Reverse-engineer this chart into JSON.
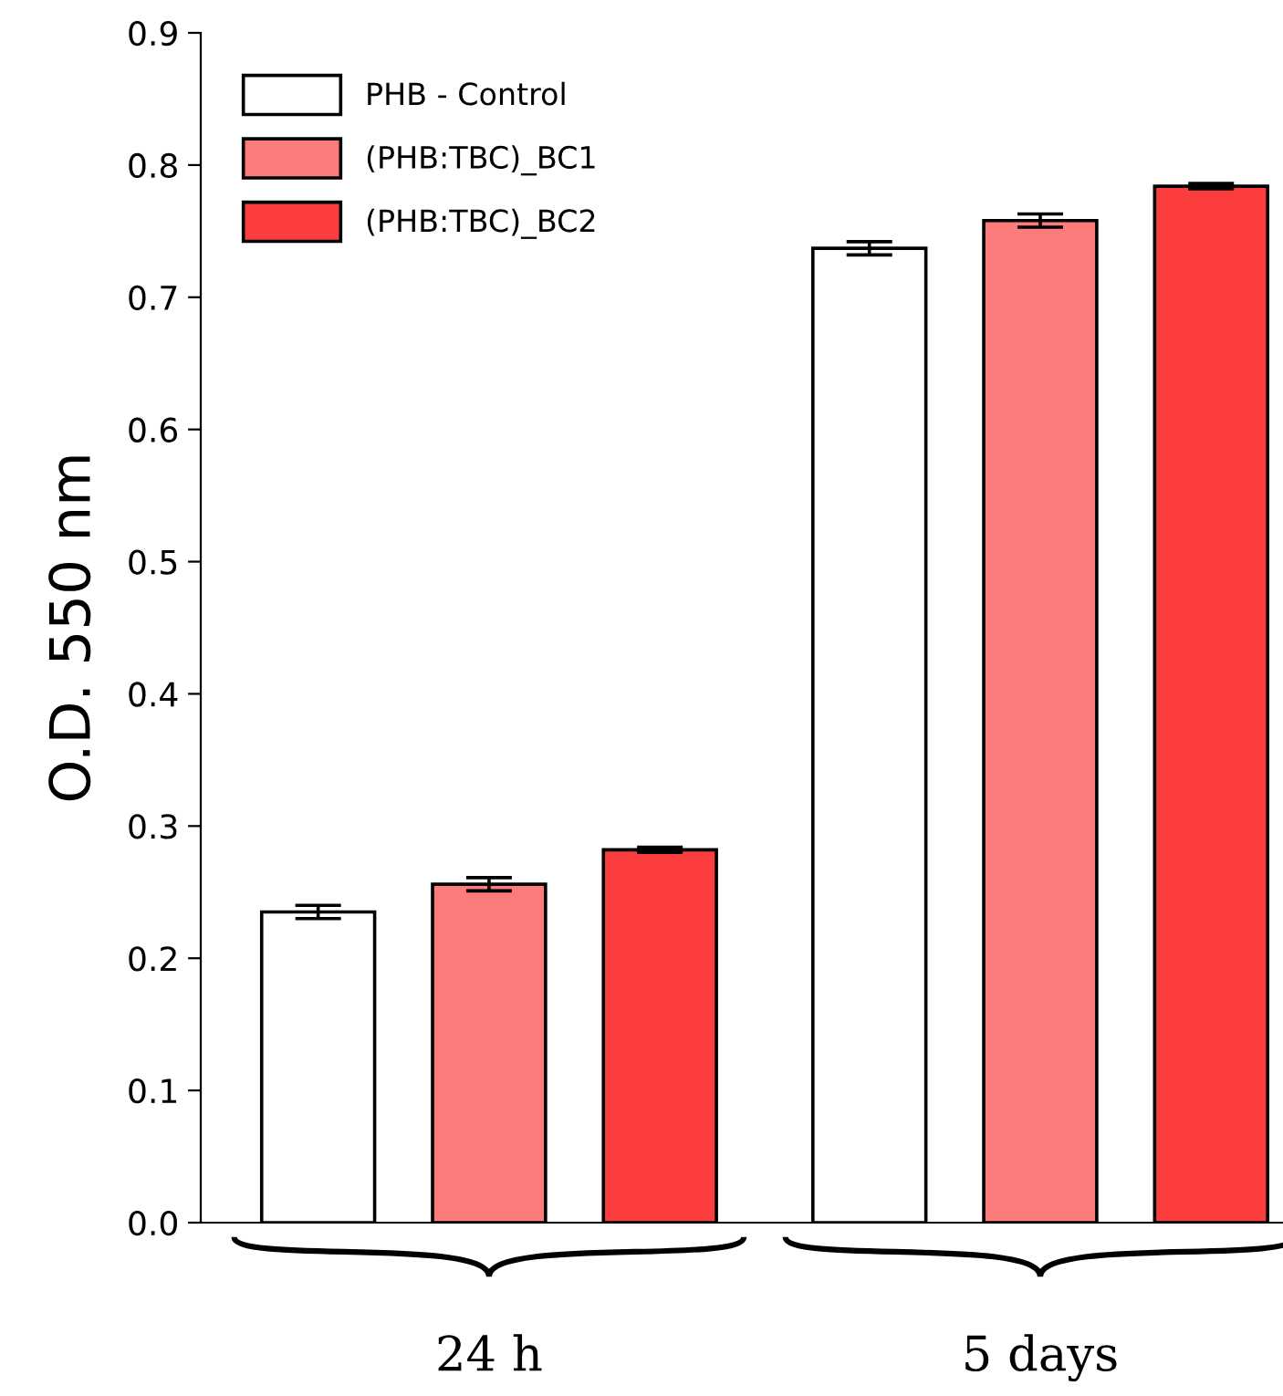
{
  "chart_data": {
    "type": "bar",
    "ylabel": "O.D. 550 nm",
    "categories": [
      "24 h",
      "5 days"
    ],
    "series": [
      {
        "name": "PHB - Control",
        "color": "#ffffff",
        "values": [
          0.235,
          0.737
        ],
        "errors": [
          0.005,
          0.005
        ]
      },
      {
        "name": "(PHB:TBC)_BC1",
        "color": "#fc7b7b",
        "values": [
          0.256,
          0.758
        ],
        "errors": [
          0.005,
          0.005
        ]
      },
      {
        "name": "(PHB:TBC)_BC2",
        "color": "#fc3d3d",
        "values": [
          0.282,
          0.784
        ],
        "errors": [
          0.002,
          0.002
        ]
      }
    ],
    "ylim": [
      0,
      0.9
    ],
    "yticks": [
      {
        "value": 0,
        "label": "0.0"
      },
      0.1,
      0.2,
      0.3,
      0.4,
      0.5,
      0.6,
      0.7,
      0.8,
      0.9
    ],
    "grid": false,
    "legend": "top left"
  }
}
